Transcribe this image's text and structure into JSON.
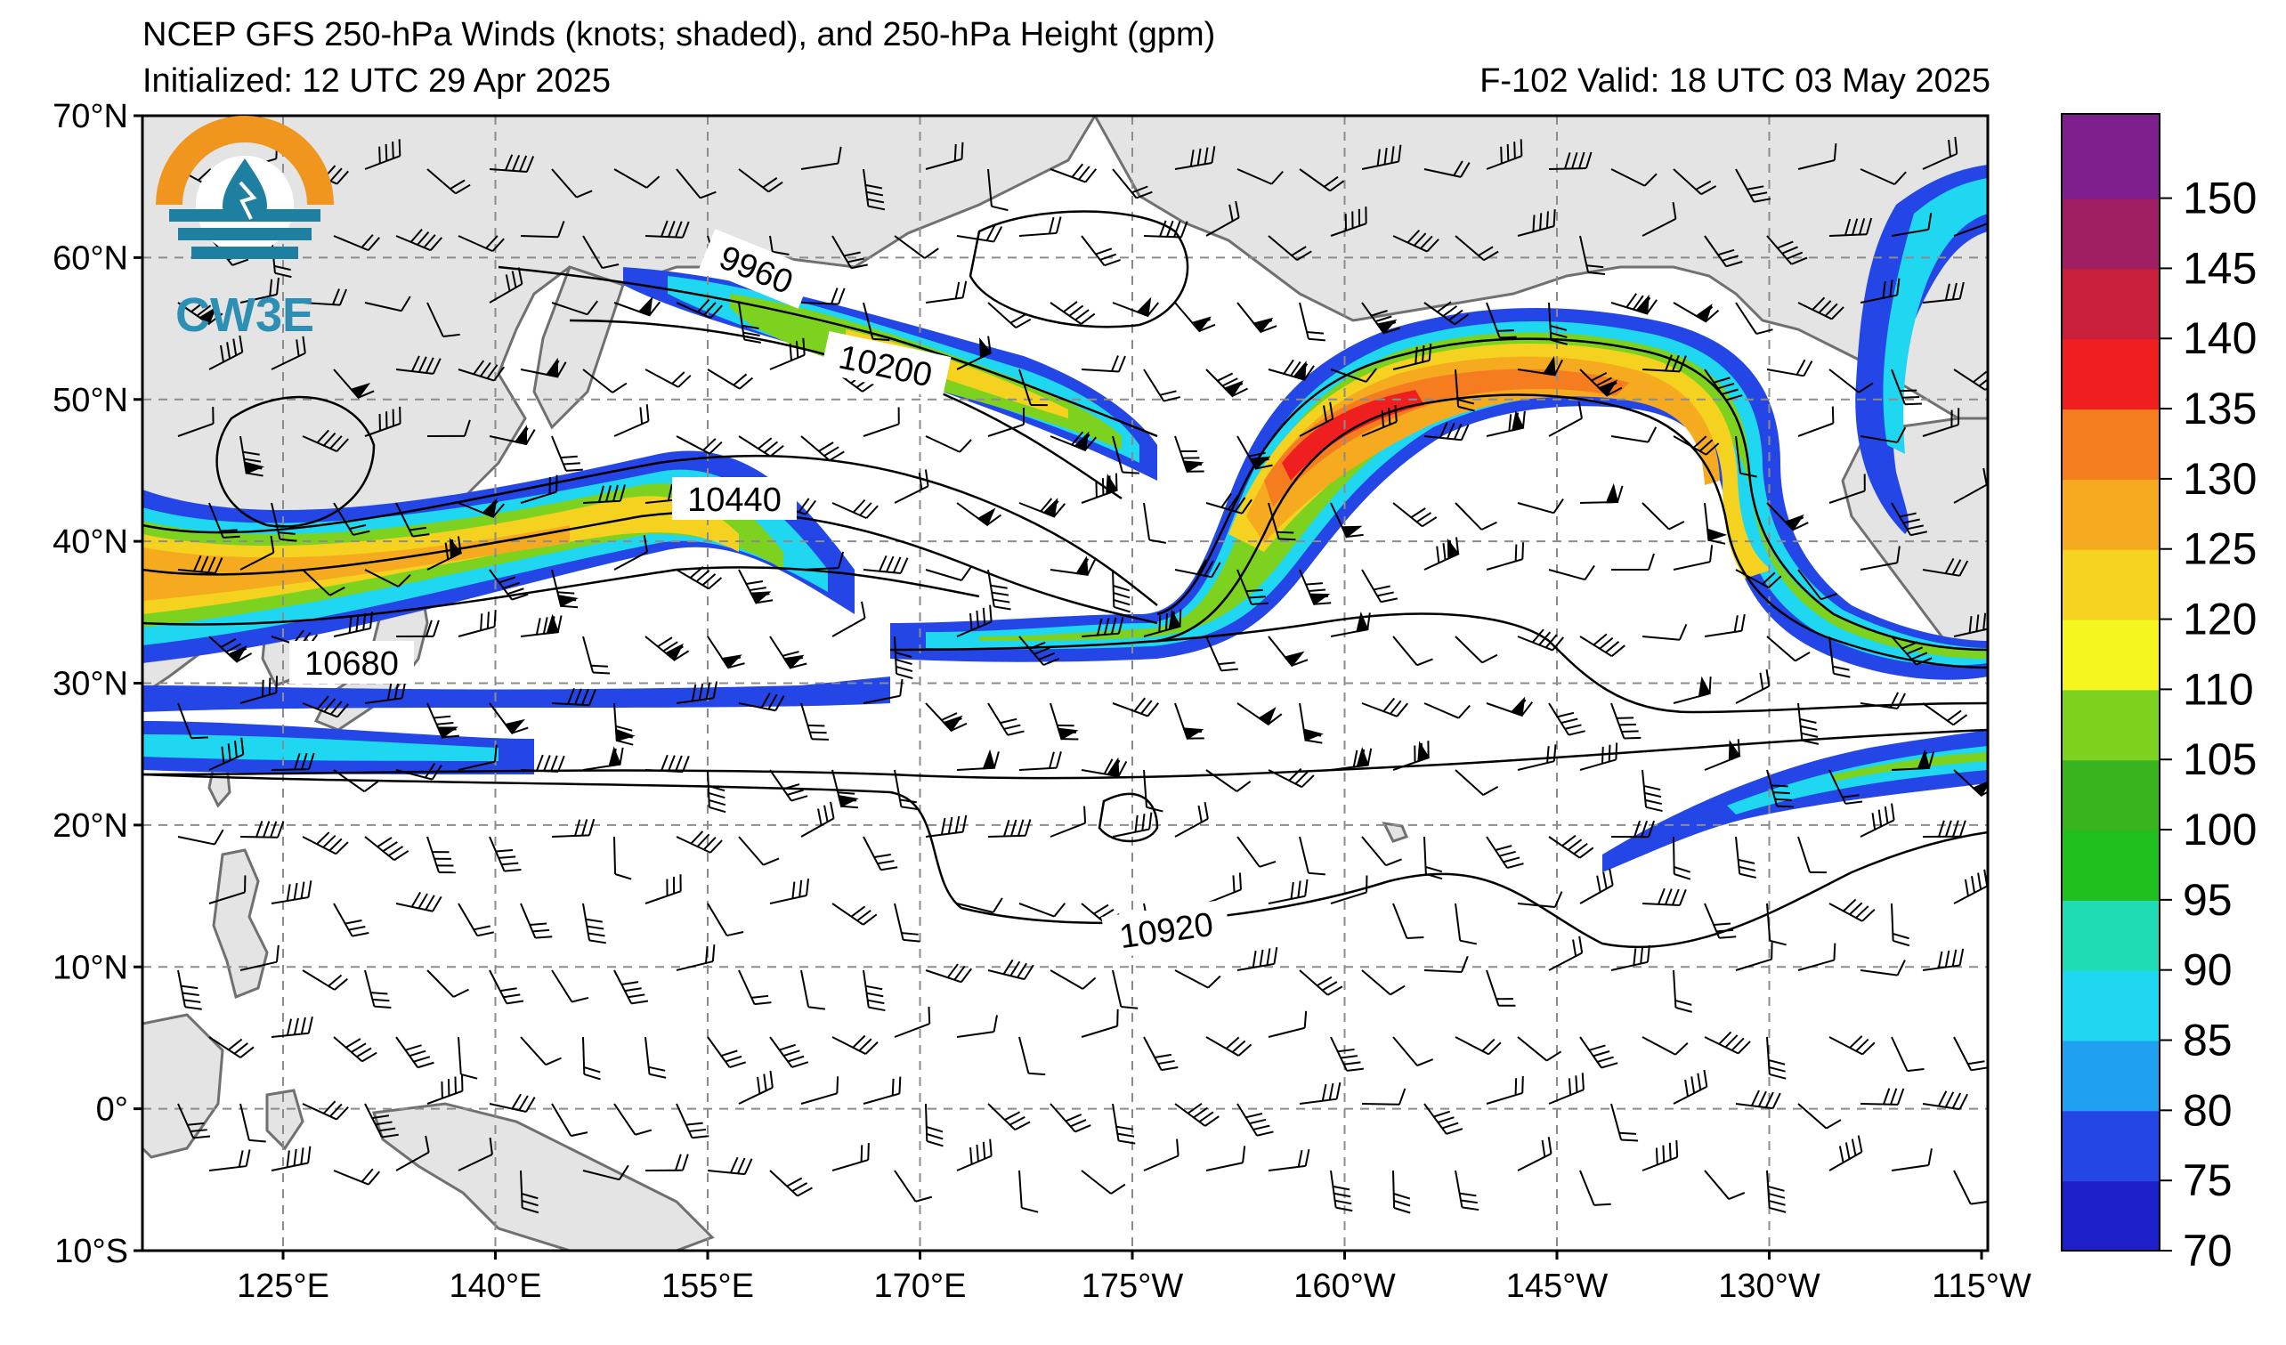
{
  "header": {
    "title": "NCEP GFS 250-hPa Winds (knots; shaded), and 250-hPa Height (gpm)",
    "initialized": "Initialized: 12 UTC 29 Apr 2025",
    "valid": "F-102  Valid: 18 UTC 03 May 2025"
  },
  "logo": {
    "text": "CW3E"
  },
  "axes": {
    "lat_labels": [
      "70°N",
      "60°N",
      "50°N",
      "40°N",
      "30°N",
      "20°N",
      "10°N",
      "0°",
      "10°S"
    ],
    "lon_labels": [
      "125°E",
      "140°E",
      "155°E",
      "170°E",
      "175°W",
      "160°W",
      "145°W",
      "130°W",
      "115°W"
    ]
  },
  "contour_labels": [
    "9960",
    "10200",
    "10440",
    "10680",
    "10920"
  ],
  "colorbar": {
    "tick_labels": [
      "70",
      "75",
      "80",
      "85",
      "90",
      "95",
      "100",
      "105",
      "110",
      "120",
      "125",
      "130",
      "135",
      "140",
      "145",
      "150"
    ],
    "colors": [
      "#1d1fc8",
      "#2446e6",
      "#1fa0f0",
      "#1fd7f0",
      "#1fdcb4",
      "#1fbf1f",
      "#38b41f",
      "#7dd21f",
      "#f5f51f",
      "#f5d21f",
      "#f5aa1f",
      "#f57d1f",
      "#f01f1f",
      "#c81f3c",
      "#a01f64",
      "#7d1f8c"
    ],
    "top_color": "#7d1f8c"
  },
  "colors": {
    "land": "#e4e4e4",
    "coast": "#707070",
    "grid": "#8c8c8c"
  }
}
